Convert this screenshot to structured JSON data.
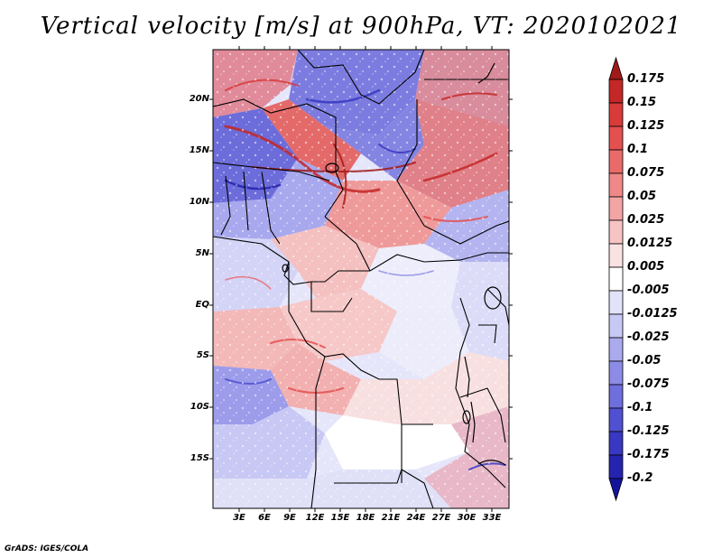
{
  "title": "Vertical velocity [m/s] at 900hPa, VT: 2020102021",
  "credit": "GrADS: IGES/COLA",
  "map": {
    "region": "Central Africa",
    "variable": "Vertical velocity",
    "units": "m/s",
    "level": "900hPa",
    "valid_time": "2020102021",
    "lat_labels": [
      "20N",
      "15N",
      "10N",
      "5N",
      "EQ",
      "5S",
      "10S",
      "15S"
    ],
    "lon_labels": [
      "3E",
      "6E",
      "9E",
      "12E",
      "15E",
      "18E",
      "21E",
      "24E",
      "27E",
      "30E",
      "33E"
    ]
  },
  "colorbar": {
    "labels": [
      "0.175",
      "0.15",
      "0.125",
      "0.1",
      "0.075",
      "0.05",
      "0.025",
      "0.0125",
      "0.005",
      "-0.005",
      "-0.0125",
      "-0.025",
      "-0.05",
      "-0.075",
      "-0.1",
      "-0.125",
      "-0.175",
      "-0.2"
    ],
    "colors": [
      "#a11a1a",
      "#c42727",
      "#d93a3a",
      "#e45050",
      "#ea6a6a",
      "#ef8888",
      "#f3a4a4",
      "#f7c4c4",
      "#fbe2e2",
      "#ffffff",
      "#e2e2fa",
      "#c8c8f5",
      "#aaaaee",
      "#8c8ce6",
      "#6e6edd",
      "#5050d2",
      "#3838c2",
      "#2424b0",
      "#14149a"
    ]
  }
}
